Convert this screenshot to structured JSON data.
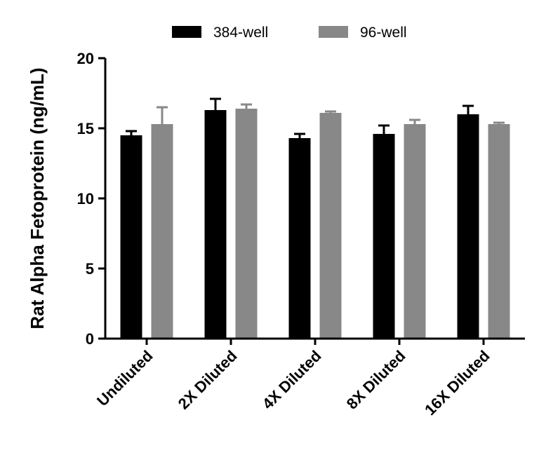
{
  "chart_data": {
    "type": "bar",
    "title": "",
    "xlabel": "",
    "ylabel": "Rat Alpha Fetoprotein (ng/mL)",
    "ylim": [
      0,
      20
    ],
    "yticks": [
      0,
      5,
      10,
      15,
      20
    ],
    "categories": [
      "Undiluted",
      "2X Diluted",
      "4X Diluted",
      "8X Diluted",
      "16X Diluted"
    ],
    "series": [
      {
        "name": "384-well",
        "color": "#000000",
        "values": [
          14.5,
          16.3,
          14.3,
          14.6,
          16.0
        ],
        "errors": [
          0.3,
          0.8,
          0.3,
          0.6,
          0.6
        ]
      },
      {
        "name": "96-well",
        "color": "#888888",
        "values": [
          15.3,
          16.4,
          16.1,
          15.3,
          15.3
        ],
        "errors": [
          1.2,
          0.3,
          0.1,
          0.3,
          0.1
        ]
      }
    ],
    "legend": "top",
    "grid": false
  }
}
